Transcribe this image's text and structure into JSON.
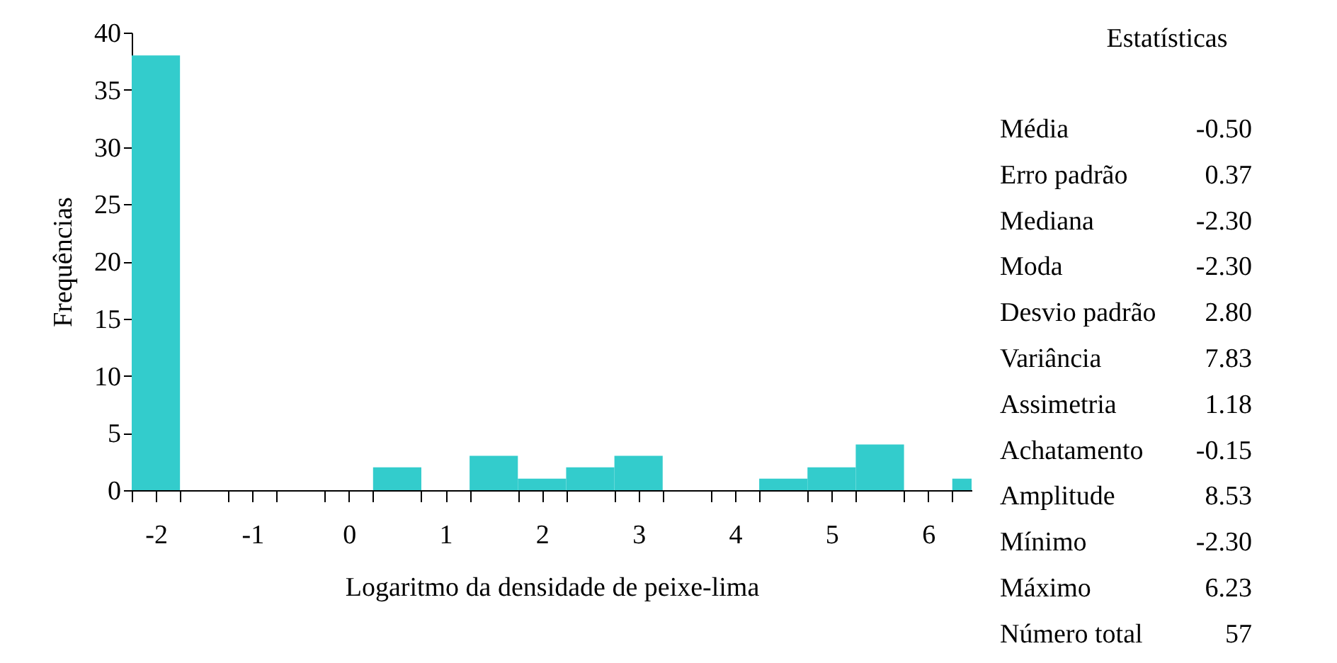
{
  "chart_data": {
    "type": "histogram",
    "xlabel": "Logaritmo da densidade de peixe-lima",
    "ylabel": "Frequências",
    "bins": [
      -2.25,
      -1.75,
      -1.25,
      -0.75,
      -0.25,
      0.25,
      0.75,
      1.25,
      1.75,
      2.25,
      2.75,
      3.25,
      3.75,
      4.25,
      4.75,
      5.25,
      5.75,
      6.25,
      6.75
    ],
    "values": [
      38,
      0,
      0,
      0,
      0,
      2,
      0,
      3,
      1,
      2,
      3,
      0,
      0,
      1,
      2,
      4,
      0,
      1
    ],
    "color": "#33cccc",
    "xlim": [
      -2.25,
      6.45
    ],
    "xticks": [
      {
        "value": -2.25,
        "label": null
      },
      {
        "value": -2,
        "label": "-2"
      },
      {
        "value": -1.75,
        "label": null
      },
      {
        "value": -1.25,
        "label": null
      },
      {
        "value": -1,
        "label": "-1"
      },
      {
        "value": -0.75,
        "label": null
      },
      {
        "value": -0.25,
        "label": null
      },
      {
        "value": 0,
        "label": "0"
      },
      {
        "value": 0.25,
        "label": null
      },
      {
        "value": 0.75,
        "label": null
      },
      {
        "value": 1,
        "label": "1"
      },
      {
        "value": 1.25,
        "label": null
      },
      {
        "value": 1.75,
        "label": null
      },
      {
        "value": 2,
        "label": "2"
      },
      {
        "value": 2.25,
        "label": null
      },
      {
        "value": 2.75,
        "label": null
      },
      {
        "value": 3,
        "label": "3"
      },
      {
        "value": 3.25,
        "label": null
      },
      {
        "value": 3.75,
        "label": null
      },
      {
        "value": 4,
        "label": "4"
      },
      {
        "value": 4.25,
        "label": null
      },
      {
        "value": 4.75,
        "label": null
      },
      {
        "value": 5,
        "label": "5"
      },
      {
        "value": 5.25,
        "label": null
      },
      {
        "value": 5.75,
        "label": null
      },
      {
        "value": 6,
        "label": "6"
      },
      {
        "value": 6.25,
        "label": null
      }
    ],
    "ylim": [
      0,
      40
    ],
    "yticks": [
      0,
      5,
      10,
      15,
      20,
      25,
      30,
      35,
      40
    ],
    "grid": false,
    "annotations": [
      "Estatísticas",
      "Média",
      "-0.50",
      "Erro padrão",
      "0.37",
      "Mediana",
      "-2.30",
      "Moda",
      "-2.30",
      "Desvio padrão",
      "2.80",
      "Variância",
      "7.83",
      "Assimetria",
      "1.18",
      "Achatamento",
      "-0.15",
      "Amplitude",
      "8.53",
      "Mínimo",
      "-2.30",
      "Máximo",
      "6.23",
      "Número total",
      "57"
    ]
  }
}
